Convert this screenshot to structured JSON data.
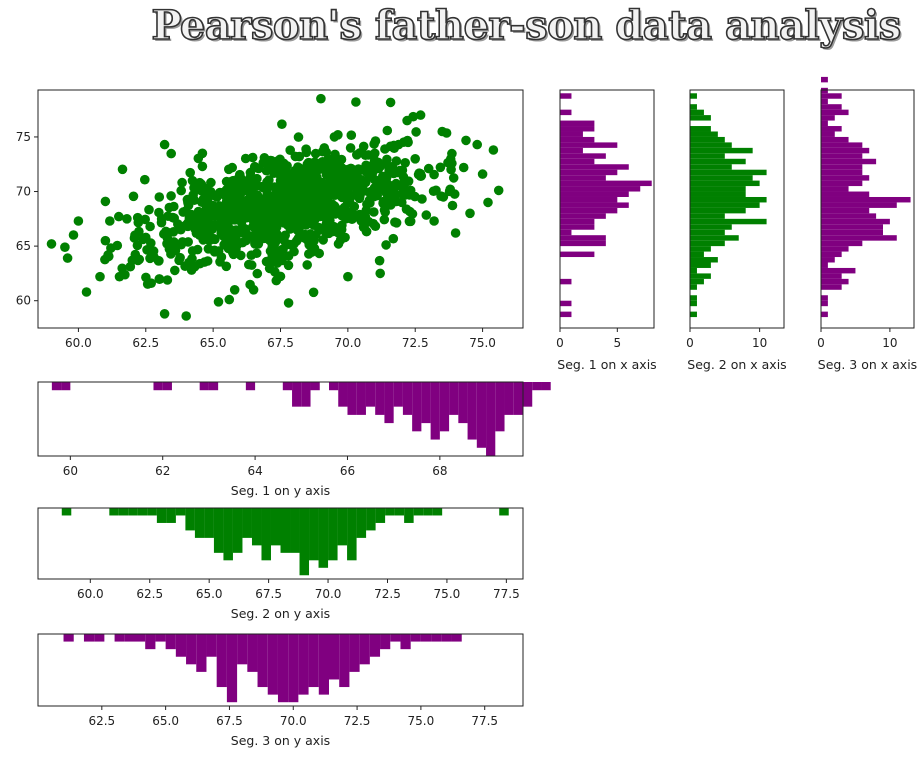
{
  "title": "Pearson's father-son data analysis",
  "colors": {
    "green": "#008000",
    "purple": "#800080",
    "axis": "#222222"
  },
  "chart_data": [
    {
      "id": "scatter",
      "type": "scatter",
      "color": "#008000",
      "xlim": [
        58.5,
        76.5
      ],
      "ylim": [
        57.5,
        79.3
      ],
      "xticks": [
        60.0,
        62.5,
        65.0,
        67.5,
        70.0,
        72.5,
        75.0
      ],
      "xtick_labels": [
        "60.0",
        "62.5",
        "65.0",
        "67.5",
        "70.0",
        "72.5",
        "75.0"
      ],
      "yticks": [
        60,
        65,
        70,
        75
      ],
      "ytick_labels": [
        "60",
        "65",
        "70",
        "75"
      ],
      "points": [
        [
          59.0,
          65.2
        ],
        [
          59.5,
          64.9
        ],
        [
          59.6,
          63.9
        ],
        [
          60.0,
          67.3
        ],
        [
          60.3,
          60.8
        ],
        [
          60.8,
          62.2
        ],
        [
          61.0,
          69.1
        ],
        [
          61.0,
          65.5
        ],
        [
          61.1,
          64.2
        ],
        [
          61.5,
          67.7
        ],
        [
          61.8,
          67.5
        ],
        [
          62.0,
          63.7
        ],
        [
          62.1,
          66.0
        ],
        [
          62.2,
          67.6
        ],
        [
          62.5,
          65.8
        ],
        [
          62.7,
          61.6
        ],
        [
          62.8,
          64.0
        ],
        [
          63.0,
          62.0
        ],
        [
          63.0,
          69.5
        ],
        [
          63.2,
          74.3
        ],
        [
          63.2,
          58.8
        ],
        [
          63.5,
          65.2
        ],
        [
          63.8,
          66.5
        ],
        [
          64.0,
          58.6
        ],
        [
          64.1,
          63.5
        ],
        [
          64.2,
          62.8
        ],
        [
          64.5,
          66.0
        ],
        [
          64.6,
          73.5
        ],
        [
          64.6,
          72.3
        ],
        [
          64.8,
          67.8
        ],
        [
          65.0,
          68.7
        ],
        [
          65.2,
          59.9
        ],
        [
          65.3,
          66.2
        ],
        [
          65.6,
          60.1
        ],
        [
          65.8,
          61.0
        ],
        [
          66.0,
          69.0
        ],
        [
          66.1,
          70.0
        ],
        [
          66.5,
          61.0
        ],
        [
          66.7,
          65.5
        ],
        [
          67.0,
          70.5
        ],
        [
          67.2,
          65.0
        ],
        [
          67.5,
          71.0
        ],
        [
          67.8,
          59.8
        ],
        [
          68.0,
          64.5
        ],
        [
          68.2,
          66.7
        ],
        [
          68.5,
          72.5
        ],
        [
          68.7,
          69.0
        ],
        [
          69.0,
          78.5
        ],
        [
          69.2,
          67.0
        ],
        [
          69.5,
          75.0
        ],
        [
          69.8,
          72.1
        ],
        [
          70.0,
          62.2
        ],
        [
          70.1,
          74.0
        ],
        [
          70.3,
          78.2
        ],
        [
          70.5,
          67.3
        ],
        [
          70.8,
          69.2
        ],
        [
          71.0,
          73.5
        ],
        [
          71.2,
          62.5
        ],
        [
          71.5,
          70.0
        ],
        [
          71.8,
          72.8
        ],
        [
          72.0,
          69.0
        ],
        [
          72.2,
          76.5
        ],
        [
          72.5,
          73.0
        ],
        [
          72.7,
          77.0
        ],
        [
          73.0,
          72.1
        ],
        [
          73.2,
          67.3
        ],
        [
          73.5,
          75.5
        ],
        [
          73.8,
          70.2
        ],
        [
          74.0,
          66.2
        ],
        [
          74.3,
          72.2
        ],
        [
          74.8,
          74.3
        ],
        [
          75.0,
          71.6
        ],
        [
          75.2,
          69.0
        ],
        [
          75.4,
          73.8
        ],
        [
          75.6,
          70.1
        ]
      ],
      "ncloud": 980,
      "seed": 1078
    },
    {
      "id": "hx1",
      "type": "bar",
      "orientation": "horizontal",
      "color": "#800080",
      "xlabel": "Seg. 1 on x axis",
      "xlim": [
        0,
        8.2
      ],
      "xticks": [
        0,
        5
      ],
      "xtick_labels": [
        "0",
        "5"
      ],
      "ylim": [
        57.5,
        79.3
      ],
      "bin_start": 58.5,
      "bin_width": 0.5,
      "values": [
        1,
        0,
        1,
        0,
        0,
        0,
        1,
        0,
        0,
        0,
        0,
        3,
        0,
        4,
        4,
        1,
        3,
        3,
        4,
        5,
        6,
        5,
        6,
        7,
        8,
        4,
        5,
        6,
        3,
        4,
        2,
        5,
        3,
        2,
        3,
        3,
        0,
        1,
        0,
        0,
        1,
        0,
        0,
        0,
        0,
        0
      ]
    },
    {
      "id": "hx2",
      "type": "bar",
      "orientation": "horizontal",
      "color": "#008000",
      "xlabel": "Seg. 2 on x axis",
      "xlim": [
        0,
        13.5
      ],
      "xticks": [
        0,
        10
      ],
      "xtick_labels": [
        "0",
        "10"
      ],
      "ylim": [
        57.5,
        79.3
      ],
      "bin_start": 58.5,
      "bin_width": 0.5,
      "values": [
        1,
        0,
        1,
        1,
        0,
        1,
        2,
        3,
        1,
        3,
        4,
        2,
        3,
        5,
        7,
        5,
        6,
        11,
        5,
        8,
        10,
        11,
        8,
        8,
        10,
        9,
        11,
        6,
        8,
        5,
        9,
        6,
        5,
        4,
        3,
        0,
        3,
        2,
        1,
        0,
        1,
        0,
        0,
        0,
        0,
        0
      ]
    },
    {
      "id": "hx3",
      "type": "bar",
      "orientation": "horizontal",
      "color": "#800080",
      "xlabel": "Seg. 3 on x axis",
      "xlim": [
        0,
        13.5
      ],
      "xticks": [
        0,
        10
      ],
      "xtick_labels": [
        "0",
        "10"
      ],
      "ylim": [
        57.5,
        79.3
      ],
      "bin_start": 58.5,
      "bin_width": 0.5,
      "values": [
        1,
        0,
        1,
        1,
        0,
        3,
        4,
        3,
        5,
        1,
        2,
        3,
        4,
        6,
        11,
        9,
        9,
        10,
        8,
        7,
        11,
        13,
        7,
        4,
        6,
        7,
        6,
        6,
        8,
        6,
        7,
        6,
        4,
        2,
        3,
        1,
        2,
        4,
        3,
        1,
        3,
        1,
        0,
        1,
        0,
        0
      ]
    },
    {
      "id": "hy1",
      "type": "bar",
      "orientation": "vertical",
      "direction": "down",
      "color": "#800080",
      "xlabel": "Seg. 1 on y axis",
      "xlim": [
        59.3,
        69.8
      ],
      "vmax": 9,
      "xticks": [
        60,
        62,
        64,
        66,
        68
      ],
      "xtick_labels": [
        "60",
        "62",
        "64",
        "66",
        "68"
      ],
      "bin_start": 59.4,
      "bin_width": 0.2,
      "values": [
        0,
        1,
        1,
        0,
        0,
        0,
        0,
        0,
        0,
        0,
        0,
        0,
        1,
        1,
        0,
        0,
        0,
        1,
        1,
        0,
        0,
        0,
        1,
        0,
        0,
        0,
        1,
        3,
        3,
        1,
        0,
        1,
        3,
        4,
        4,
        3,
        4,
        5,
        3,
        4,
        6,
        5,
        7,
        6,
        4,
        5,
        7,
        8,
        9,
        6,
        4,
        4,
        3,
        1,
        1,
        0
      ]
    },
    {
      "id": "hy2",
      "type": "bar",
      "orientation": "vertical",
      "direction": "down",
      "color": "#008000",
      "xlabel": "Seg. 2 on y axis",
      "xlim": [
        57.8,
        78.2
      ],
      "vmax": 9.5,
      "xticks": [
        60.0,
        62.5,
        65.0,
        67.5,
        70.0,
        72.5,
        75.0,
        77.5
      ],
      "xtick_labels": [
        "60.0",
        "62.5",
        "65.0",
        "67.5",
        "70.0",
        "72.5",
        "75.0",
        "77.5"
      ],
      "bin_start": 58.8,
      "bin_width": 0.4,
      "values": [
        1,
        0,
        0,
        0,
        0,
        1,
        1,
        1,
        1,
        1,
        2,
        2,
        1,
        3,
        4,
        4,
        6,
        7,
        6,
        4,
        5,
        7,
        5,
        6,
        6,
        9,
        7,
        8,
        7,
        5,
        7,
        4,
        3,
        2,
        1,
        1,
        2,
        1,
        1,
        1,
        0,
        0,
        0,
        0,
        0,
        0,
        1,
        0
      ]
    },
    {
      "id": "hy3",
      "type": "bar",
      "orientation": "vertical",
      "direction": "down",
      "color": "#800080",
      "xlabel": "Seg. 3 on y axis",
      "xlim": [
        60.0,
        79.0
      ],
      "vmax": 9.5,
      "xticks": [
        62.5,
        65.0,
        67.5,
        70.0,
        72.5,
        75.0,
        77.5
      ],
      "xtick_labels": [
        "62.5",
        "65.0",
        "67.5",
        "70.0",
        "72.5",
        "75.0",
        "77.5"
      ],
      "bin_start": 61.0,
      "bin_width": 0.4,
      "values": [
        1,
        0,
        1,
        1,
        0,
        1,
        1,
        1,
        2,
        1,
        2,
        3,
        4,
        5,
        3,
        7,
        9,
        4,
        5,
        7,
        8,
        9,
        9,
        8,
        7,
        8,
        6,
        7,
        5,
        4,
        3,
        2,
        1,
        2,
        1,
        1,
        1,
        1,
        1,
        0,
        0,
        0,
        0,
        0,
        0
      ]
    }
  ]
}
